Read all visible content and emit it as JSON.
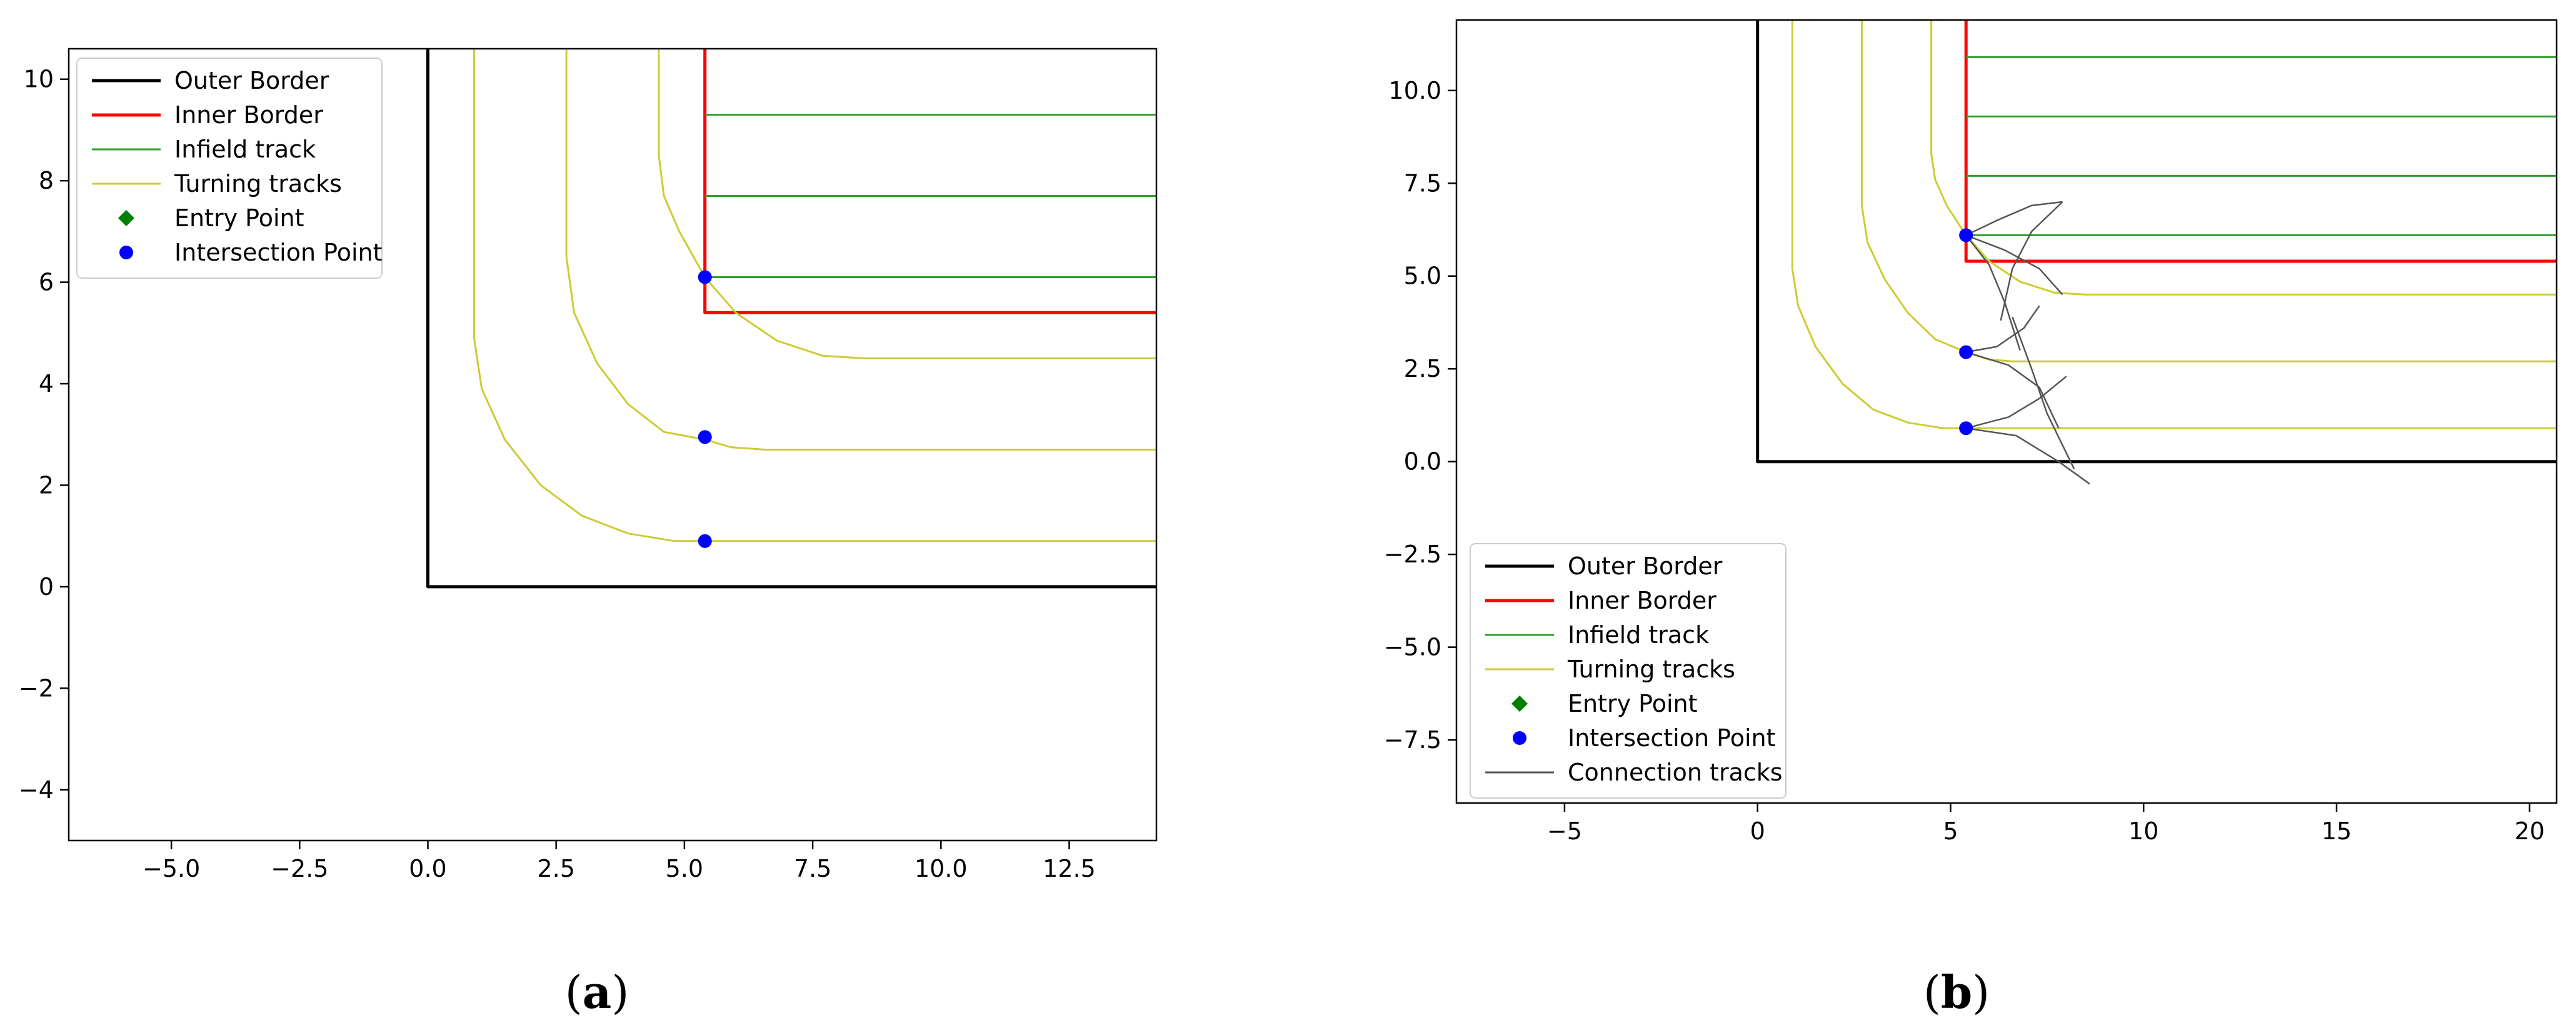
{
  "figure": {
    "captions": [
      {
        "open": "(",
        "letter": "a",
        "close": ")"
      },
      {
        "open": "(",
        "letter": "b",
        "close": ")"
      }
    ]
  },
  "chart_data": [
    {
      "type": "line",
      "title": "",
      "xlabel": "",
      "ylabel": "",
      "xlim": [
        -7.0,
        14.2
      ],
      "ylim": [
        -5.0,
        10.6
      ],
      "xticks": [
        -5.0,
        -2.5,
        0.0,
        2.5,
        5.0,
        7.5,
        10.0,
        12.5
      ],
      "xtick_labels": [
        "−5.0",
        "−2.5",
        "0.0",
        "2.5",
        "5.0",
        "7.5",
        "10.0",
        "12.5"
      ],
      "yticks": [
        -4,
        -2,
        0,
        2,
        4,
        6,
        8,
        10
      ],
      "ytick_labels": [
        "−4",
        "−2",
        "0",
        "2",
        "4",
        "6",
        "8",
        "10"
      ],
      "grid": false,
      "legend": {
        "position": "upper-left",
        "entries": [
          {
            "label": "Outer Border",
            "kind": "line",
            "color": "#000000"
          },
          {
            "label": "Inner Border",
            "kind": "line",
            "color": "#ff0000"
          },
          {
            "label": "Infield track",
            "kind": "line",
            "color": "#2ca02c"
          },
          {
            "label": "Turning tracks",
            "kind": "line",
            "color": "#cccc33"
          },
          {
            "label": "Entry Point",
            "kind": "diamond",
            "color": "#008000"
          },
          {
            "label": "Intersection Point",
            "kind": "circle",
            "color": "#0000ff"
          }
        ]
      },
      "series": [
        {
          "role": "outer-border",
          "color": "#000000",
          "points": [
            [
              0,
              10.6
            ],
            [
              0,
              0
            ],
            [
              14.2,
              0
            ]
          ]
        },
        {
          "role": "inner-border",
          "color": "#ff0000",
          "points": [
            [
              5.4,
              10.6
            ],
            [
              5.4,
              5.4
            ],
            [
              14.2,
              5.4
            ]
          ]
        },
        {
          "role": "infield",
          "color": "#2ca02c",
          "points": [
            [
              5.4,
              9.3
            ],
            [
              14.2,
              9.3
            ]
          ]
        },
        {
          "role": "infield",
          "color": "#2ca02c",
          "points": [
            [
              5.4,
              7.7
            ],
            [
              14.2,
              7.7
            ]
          ]
        },
        {
          "role": "infield",
          "color": "#2ca02c",
          "points": [
            [
              5.4,
              6.1
            ],
            [
              14.2,
              6.1
            ]
          ]
        },
        {
          "role": "turning",
          "color": "#cccc33",
          "points": [
            [
              4.5,
              10.6
            ],
            [
              4.5,
              8.5
            ],
            [
              4.6,
              7.7
            ],
            [
              4.9,
              7.0
            ],
            [
              5.4,
              6.1
            ],
            [
              6.0,
              5.4
            ],
            [
              6.8,
              4.85
            ],
            [
              7.7,
              4.55
            ],
            [
              8.5,
              4.5
            ],
            [
              14.2,
              4.5
            ]
          ]
        },
        {
          "role": "turning",
          "color": "#cccc33",
          "points": [
            [
              2.7,
              10.6
            ],
            [
              2.7,
              6.5
            ],
            [
              2.85,
              5.4
            ],
            [
              3.3,
              4.4
            ],
            [
              3.9,
              3.6
            ],
            [
              4.6,
              3.05
            ],
            [
              5.4,
              2.9
            ],
            [
              5.9,
              2.75
            ],
            [
              6.6,
              2.7
            ],
            [
              14.2,
              2.7
            ]
          ]
        },
        {
          "role": "turning",
          "color": "#cccc33",
          "points": [
            [
              0.9,
              10.6
            ],
            [
              0.9,
              4.9
            ],
            [
              1.05,
              3.9
            ],
            [
              1.5,
              2.9
            ],
            [
              2.2,
              2.0
            ],
            [
              3.0,
              1.4
            ],
            [
              3.9,
              1.05
            ],
            [
              4.8,
              0.9
            ],
            [
              14.2,
              0.9
            ]
          ]
        }
      ],
      "points": [
        {
          "role": "intersection",
          "marker": "circle",
          "color": "#0000ff",
          "x": 5.4,
          "y": 6.1
        },
        {
          "role": "intersection",
          "marker": "circle",
          "color": "#0000ff",
          "x": 5.4,
          "y": 2.95
        },
        {
          "role": "intersection",
          "marker": "circle",
          "color": "#0000ff",
          "x": 5.4,
          "y": 0.9
        }
      ]
    },
    {
      "type": "line",
      "title": "",
      "xlabel": "",
      "ylabel": "",
      "xlim": [
        -7.8,
        20.7
      ],
      "ylim": [
        -9.2,
        11.9
      ],
      "xticks": [
        -5,
        0,
        5,
        10,
        15,
        20
      ],
      "xtick_labels": [
        "−5",
        "0",
        "5",
        "10",
        "15",
        "20"
      ],
      "yticks": [
        -7.5,
        -5.0,
        -2.5,
        0.0,
        2.5,
        5.0,
        7.5,
        10.0
      ],
      "ytick_labels": [
        "−7.5",
        "−5.0",
        "−2.5",
        "0.0",
        "2.5",
        "5.0",
        "7.5",
        "10.0"
      ],
      "grid": false,
      "legend": {
        "position": "lower-left",
        "entries": [
          {
            "label": "Outer Border",
            "kind": "line",
            "color": "#000000"
          },
          {
            "label": "Inner Border",
            "kind": "line",
            "color": "#ff0000"
          },
          {
            "label": "Infield track",
            "kind": "line",
            "color": "#2ca02c"
          },
          {
            "label": "Turning tracks",
            "kind": "line",
            "color": "#cccc33"
          },
          {
            "label": "Entry Point",
            "kind": "diamond",
            "color": "#008000"
          },
          {
            "label": "Intersection Point",
            "kind": "circle",
            "color": "#0000ff"
          },
          {
            "label": "Connection tracks",
            "kind": "line",
            "color": "#555555"
          }
        ]
      },
      "series": [
        {
          "role": "outer-border",
          "color": "#000000",
          "points": [
            [
              0,
              11.9
            ],
            [
              0,
              0
            ],
            [
              20.7,
              0
            ]
          ]
        },
        {
          "role": "inner-border",
          "color": "#ff0000",
          "points": [
            [
              5.4,
              11.9
            ],
            [
              5.4,
              5.4
            ],
            [
              20.7,
              5.4
            ]
          ]
        },
        {
          "role": "infield",
          "color": "#2ca02c",
          "points": [
            [
              5.4,
              10.9
            ],
            [
              20.7,
              10.9
            ]
          ]
        },
        {
          "role": "infield",
          "color": "#2ca02c",
          "points": [
            [
              5.4,
              9.3
            ],
            [
              20.7,
              9.3
            ]
          ]
        },
        {
          "role": "infield",
          "color": "#2ca02c",
          "points": [
            [
              5.4,
              7.7
            ],
            [
              20.7,
              7.7
            ]
          ]
        },
        {
          "role": "infield",
          "color": "#2ca02c",
          "points": [
            [
              5.4,
              6.1
            ],
            [
              20.7,
              6.1
            ]
          ]
        },
        {
          "role": "turning",
          "color": "#cccc33",
          "points": [
            [
              4.5,
              11.9
            ],
            [
              4.5,
              8.3
            ],
            [
              4.6,
              7.6
            ],
            [
              4.9,
              6.9
            ],
            [
              5.4,
              6.1
            ],
            [
              6.0,
              5.4
            ],
            [
              6.8,
              4.85
            ],
            [
              7.7,
              4.55
            ],
            [
              8.5,
              4.5
            ],
            [
              20.7,
              4.5
            ]
          ]
        },
        {
          "role": "turning",
          "color": "#cccc33",
          "points": [
            [
              2.7,
              11.9
            ],
            [
              2.7,
              6.9
            ],
            [
              2.85,
              5.9
            ],
            [
              3.3,
              4.9
            ],
            [
              3.9,
              4.0
            ],
            [
              4.6,
              3.3
            ],
            [
              5.4,
              2.95
            ],
            [
              6.0,
              2.75
            ],
            [
              6.6,
              2.7
            ],
            [
              20.7,
              2.7
            ]
          ]
        },
        {
          "role": "turning",
          "color": "#cccc33",
          "points": [
            [
              0.9,
              11.9
            ],
            [
              0.9,
              5.2
            ],
            [
              1.05,
              4.2
            ],
            [
              1.5,
              3.1
            ],
            [
              2.2,
              2.1
            ],
            [
              3.0,
              1.4
            ],
            [
              3.9,
              1.05
            ],
            [
              4.8,
              0.9
            ],
            [
              20.7,
              0.9
            ]
          ]
        },
        {
          "role": "connection",
          "color": "#555555",
          "points": [
            [
              5.4,
              6.1
            ],
            [
              6.2,
              6.5
            ],
            [
              7.1,
              6.9
            ],
            [
              7.9,
              7.0
            ]
          ]
        },
        {
          "role": "connection",
          "color": "#555555",
          "points": [
            [
              5.4,
              6.1
            ],
            [
              6.4,
              5.7
            ],
            [
              7.3,
              5.2
            ],
            [
              7.9,
              4.5
            ]
          ]
        },
        {
          "role": "connection",
          "color": "#555555",
          "points": [
            [
              7.9,
              7.0
            ],
            [
              7.1,
              6.2
            ],
            [
              6.6,
              5.2
            ],
            [
              6.3,
              3.8
            ]
          ]
        },
        {
          "role": "connection",
          "color": "#555555",
          "points": [
            [
              5.4,
              6.1
            ],
            [
              6.0,
              5.3
            ],
            [
              6.4,
              4.3
            ],
            [
              6.8,
              3.0
            ]
          ]
        },
        {
          "role": "connection",
          "color": "#555555",
          "points": [
            [
              5.4,
              2.95
            ],
            [
              6.5,
              2.6
            ],
            [
              7.3,
              2.0
            ],
            [
              7.8,
              0.9
            ]
          ]
        },
        {
          "role": "connection",
          "color": "#555555",
          "points": [
            [
              5.4,
              2.95
            ],
            [
              6.2,
              3.1
            ],
            [
              6.9,
              3.6
            ],
            [
              7.3,
              4.2
            ]
          ]
        },
        {
          "role": "connection",
          "color": "#555555",
          "points": [
            [
              6.6,
              3.9
            ],
            [
              7.1,
              2.5
            ],
            [
              7.5,
              1.3
            ],
            [
              8.2,
              -0.2
            ]
          ]
        },
        {
          "role": "connection",
          "color": "#555555",
          "points": [
            [
              5.4,
              0.9
            ],
            [
              6.7,
              0.7
            ],
            [
              7.8,
              0.0
            ],
            [
              8.6,
              -0.6
            ]
          ]
        },
        {
          "role": "connection",
          "color": "#555555",
          "points": [
            [
              5.4,
              0.9
            ],
            [
              6.5,
              1.2
            ],
            [
              7.3,
              1.7
            ],
            [
              8.0,
              2.3
            ]
          ]
        }
      ],
      "points": [
        {
          "role": "intersection",
          "marker": "circle",
          "color": "#0000ff",
          "x": 5.4,
          "y": 6.1
        },
        {
          "role": "intersection",
          "marker": "circle",
          "color": "#0000ff",
          "x": 5.4,
          "y": 2.95
        },
        {
          "role": "intersection",
          "marker": "circle",
          "color": "#0000ff",
          "x": 5.4,
          "y": 0.9
        }
      ]
    }
  ]
}
